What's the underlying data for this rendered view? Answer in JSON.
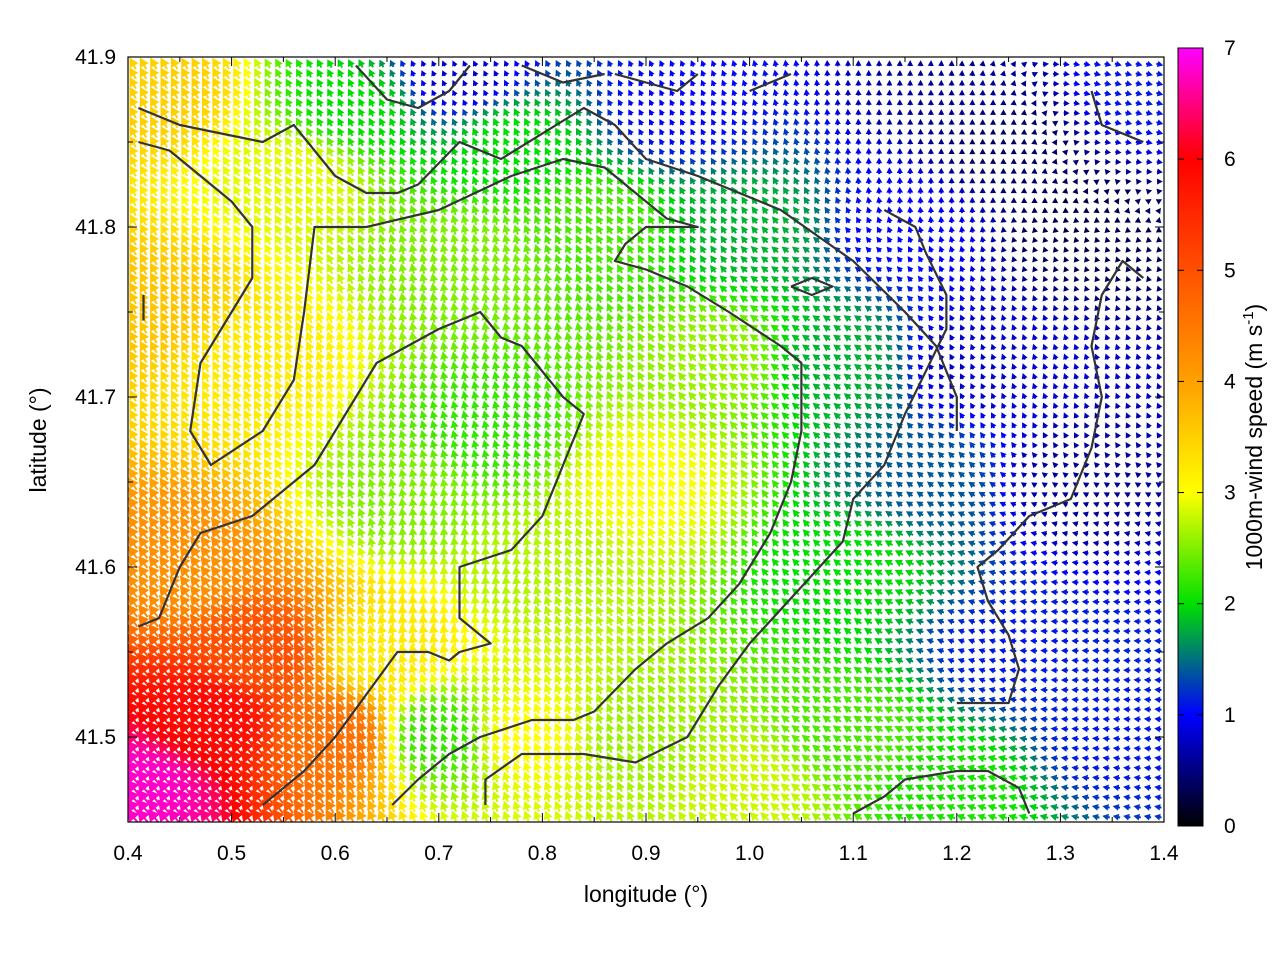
{
  "chart_data": {
    "type": "quiver",
    "xlabel": "longitude (°)",
    "ylabel": "latitude (°)",
    "colorbar_label_text": "1000m-wind speed (m s",
    "colorbar_label_sup": "-1",
    "colorbar_label_close": ")",
    "xlim": [
      0.4,
      1.4
    ],
    "ylim": [
      41.45,
      41.9
    ],
    "x_ticks": [
      0.4,
      0.5,
      0.6,
      0.7,
      0.8,
      0.9,
      1.0,
      1.1,
      1.2,
      1.3,
      1.4
    ],
    "x_tick_labels": [
      "0.4",
      "0.5",
      "0.6",
      "0.7",
      "0.8",
      "0.9",
      "1.0",
      "1.1",
      "1.2",
      "1.3",
      "1.4"
    ],
    "y_ticks": [
      41.5,
      41.6,
      41.7,
      41.8,
      41.9
    ],
    "y_tick_labels": [
      "41.5",
      "41.6",
      "41.7",
      "41.8",
      "41.9"
    ],
    "colorbar_range": [
      0,
      7
    ],
    "colorbar_ticks": [
      0,
      1,
      2,
      3,
      4,
      5,
      6,
      7
    ],
    "colorbar_tick_labels": [
      "0",
      "1",
      "2",
      "3",
      "4",
      "5",
      "6",
      "7"
    ],
    "colormap_stops": [
      {
        "value": 0,
        "color": "#000000"
      },
      {
        "value": 1,
        "color": "#0000ff"
      },
      {
        "value": 2,
        "color": "#00e000"
      },
      {
        "value": 3,
        "color": "#ffff00"
      },
      {
        "value": 4,
        "color": "#ffa000"
      },
      {
        "value": 5,
        "color": "#ff5000"
      },
      {
        "value": 6,
        "color": "#ff0000"
      },
      {
        "value": 7,
        "color": "#ff00ff"
      }
    ],
    "wind_speed_anchors": [
      {
        "lon": 0.41,
        "lat": 41.47,
        "speed": 6.8
      },
      {
        "lon": 0.48,
        "lat": 41.51,
        "speed": 5.9
      },
      {
        "lon": 0.53,
        "lat": 41.55,
        "speed": 5.0
      },
      {
        "lon": 0.6,
        "lat": 41.5,
        "speed": 4.6
      },
      {
        "lon": 0.45,
        "lat": 41.6,
        "speed": 4.2
      },
      {
        "lon": 0.42,
        "lat": 41.75,
        "speed": 3.6
      },
      {
        "lon": 0.43,
        "lat": 41.88,
        "speed": 3.5
      },
      {
        "lon": 0.52,
        "lat": 41.72,
        "speed": 3.2
      },
      {
        "lon": 0.56,
        "lat": 41.83,
        "speed": 2.9
      },
      {
        "lon": 0.64,
        "lat": 41.55,
        "speed": 3.2
      },
      {
        "lon": 0.7,
        "lat": 41.5,
        "speed": 2.2
      },
      {
        "lon": 0.78,
        "lat": 41.5,
        "speed": 3.0
      },
      {
        "lon": 0.9,
        "lat": 41.5,
        "speed": 2.6
      },
      {
        "lon": 0.9,
        "lat": 41.65,
        "speed": 3.0
      },
      {
        "lon": 0.73,
        "lat": 41.78,
        "speed": 2.5
      },
      {
        "lon": 0.67,
        "lat": 41.64,
        "speed": 2.5
      },
      {
        "lon": 0.8,
        "lat": 41.6,
        "speed": 2.7
      },
      {
        "lon": 0.75,
        "lat": 41.68,
        "speed": 2.2
      },
      {
        "lon": 0.97,
        "lat": 41.72,
        "speed": 2.6
      },
      {
        "lon": 0.62,
        "lat": 41.87,
        "speed": 2.0
      },
      {
        "lon": 0.77,
        "lat": 41.85,
        "speed": 2.0
      },
      {
        "lon": 0.85,
        "lat": 41.8,
        "speed": 2.3
      },
      {
        "lon": 1.0,
        "lat": 41.8,
        "speed": 1.8
      },
      {
        "lon": 0.93,
        "lat": 41.87,
        "speed": 1.0
      },
      {
        "lon": 0.72,
        "lat": 41.89,
        "speed": 0.8
      },
      {
        "lon": 1.08,
        "lat": 41.72,
        "speed": 1.8
      },
      {
        "lon": 1.1,
        "lat": 41.6,
        "speed": 2.0
      },
      {
        "lon": 1.1,
        "lat": 41.5,
        "speed": 2.3
      },
      {
        "lon": 1.17,
        "lat": 41.65,
        "speed": 1.4
      },
      {
        "lon": 1.15,
        "lat": 41.8,
        "speed": 1.0
      },
      {
        "lon": 1.22,
        "lat": 41.72,
        "speed": 0.8
      },
      {
        "lon": 1.25,
        "lat": 41.55,
        "speed": 1.1
      },
      {
        "lon": 1.35,
        "lat": 41.5,
        "speed": 1.1
      },
      {
        "lon": 1.32,
        "lat": 41.65,
        "speed": 0.6
      },
      {
        "lon": 1.32,
        "lat": 41.8,
        "speed": 0.3
      },
      {
        "lon": 1.25,
        "lat": 41.85,
        "speed": 0.4
      },
      {
        "lon": 1.38,
        "lat": 41.88,
        "speed": 1.1
      },
      {
        "lon": 1.2,
        "lat": 41.88,
        "speed": 0.6
      },
      {
        "lon": 1.0,
        "lat": 41.47,
        "speed": 2.8
      },
      {
        "lon": 1.2,
        "lat": 41.47,
        "speed": 2.1
      }
    ],
    "wind_direction_anchors": [
      {
        "lon": 0.45,
        "lat": 41.5,
        "dir_deg": 130
      },
      {
        "lon": 0.55,
        "lat": 41.6,
        "dir_deg": 128
      },
      {
        "lon": 0.5,
        "lat": 41.8,
        "dir_deg": 120
      },
      {
        "lon": 0.7,
        "lat": 41.6,
        "dir_deg": 95
      },
      {
        "lon": 0.75,
        "lat": 41.75,
        "dir_deg": 100
      },
      {
        "lon": 0.75,
        "lat": 41.5,
        "dir_deg": 110
      },
      {
        "lon": 0.9,
        "lat": 41.6,
        "dir_deg": 115
      },
      {
        "lon": 0.9,
        "lat": 41.8,
        "dir_deg": 120
      },
      {
        "lon": 1.05,
        "lat": 41.55,
        "dir_deg": 140
      },
      {
        "lon": 1.05,
        "lat": 41.75,
        "dir_deg": 145
      },
      {
        "lon": 1.2,
        "lat": 41.55,
        "dir_deg": 160
      },
      {
        "lon": 1.3,
        "lat": 41.55,
        "dir_deg": 178
      },
      {
        "lon": 1.3,
        "lat": 41.75,
        "dir_deg": 110
      },
      {
        "lon": 1.2,
        "lat": 41.85,
        "dir_deg": 90
      },
      {
        "lon": 1.38,
        "lat": 41.88,
        "dir_deg": -15
      }
    ],
    "contour_lines": [
      [
        [
          0.41,
          41.87
        ],
        [
          0.45,
          41.86
        ],
        [
          0.49,
          41.855
        ],
        [
          0.53,
          41.85
        ],
        [
          0.56,
          41.86
        ],
        [
          0.6,
          41.83
        ],
        [
          0.63,
          41.82
        ],
        [
          0.66,
          41.82
        ],
        [
          0.68,
          41.825
        ],
        [
          0.72,
          41.85
        ],
        [
          0.76,
          41.84
        ],
        [
          0.84,
          41.87
        ],
        [
          0.87,
          41.86
        ],
        [
          0.9,
          41.84
        ],
        [
          0.95,
          41.83
        ],
        [
          1.03,
          41.81
        ],
        [
          1.1,
          41.78
        ],
        [
          1.15,
          41.75
        ],
        [
          1.18,
          41.73
        ],
        [
          1.2,
          41.7
        ],
        [
          1.2,
          41.68
        ]
      ],
      [
        [
          0.41,
          41.85
        ],
        [
          0.44,
          41.845
        ],
        [
          0.47,
          41.83
        ],
        [
          0.5,
          41.815
        ],
        [
          0.52,
          41.8
        ],
        [
          0.52,
          41.77
        ],
        [
          0.5,
          41.75
        ],
        [
          0.47,
          41.72
        ],
        [
          0.46,
          41.68
        ],
        [
          0.48,
          41.66
        ],
        [
          0.53,
          41.68
        ],
        [
          0.56,
          41.71
        ],
        [
          0.57,
          41.75
        ],
        [
          0.58,
          41.8
        ],
        [
          0.63,
          41.8
        ],
        [
          0.7,
          41.81
        ],
        [
          0.77,
          41.83
        ],
        [
          0.82,
          41.84
        ],
        [
          0.86,
          41.835
        ],
        [
          0.89,
          41.82
        ],
        [
          0.92,
          41.805
        ],
        [
          0.95,
          41.8
        ],
        [
          0.9,
          41.8
        ],
        [
          0.88,
          41.79
        ],
        [
          0.87,
          41.78
        ],
        [
          0.9,
          41.775
        ],
        [
          0.94,
          41.765
        ],
        [
          0.98,
          41.75
        ],
        [
          1.03,
          41.73
        ],
        [
          1.05,
          41.72
        ],
        [
          1.05,
          41.68
        ],
        [
          1.04,
          41.65
        ],
        [
          1.02,
          41.62
        ],
        [
          0.99,
          41.59
        ],
        [
          0.96,
          41.57
        ],
        [
          0.92,
          41.555
        ],
        [
          0.89,
          41.54
        ],
        [
          0.85,
          41.515
        ],
        [
          0.83,
          41.51
        ],
        [
          0.79,
          41.51
        ],
        [
          0.74,
          41.5
        ],
        [
          0.71,
          41.49
        ],
        [
          0.68,
          41.475
        ],
        [
          0.655,
          41.46
        ]
      ],
      [
        [
          0.41,
          41.565
        ],
        [
          0.43,
          41.57
        ],
        [
          0.45,
          41.6
        ],
        [
          0.47,
          41.62
        ],
        [
          0.52,
          41.63
        ],
        [
          0.58,
          41.66
        ],
        [
          0.61,
          41.69
        ],
        [
          0.64,
          41.72
        ],
        [
          0.7,
          41.74
        ],
        [
          0.74,
          41.75
        ],
        [
          0.76,
          41.735
        ],
        [
          0.78,
          41.73
        ],
        [
          0.82,
          41.7
        ],
        [
          0.84,
          41.69
        ],
        [
          0.82,
          41.66
        ],
        [
          0.8,
          41.63
        ],
        [
          0.77,
          41.61
        ],
        [
          0.72,
          41.6
        ],
        [
          0.72,
          41.57
        ],
        [
          0.75,
          41.555
        ],
        [
          0.72,
          41.55
        ],
        [
          0.71,
          41.545
        ],
        [
          0.69,
          41.55
        ],
        [
          0.66,
          41.55
        ],
        [
          0.63,
          41.525
        ],
        [
          0.6,
          41.5
        ],
        [
          0.57,
          41.48
        ],
        [
          0.53,
          41.46
        ]
      ],
      [
        [
          0.745,
          41.46
        ],
        [
          0.745,
          41.475
        ],
        [
          0.78,
          41.49
        ],
        [
          0.84,
          41.49
        ],
        [
          0.89,
          41.485
        ],
        [
          0.94,
          41.5
        ],
        [
          0.97,
          41.53
        ],
        [
          1.0,
          41.555
        ],
        [
          1.03,
          41.575
        ],
        [
          1.06,
          41.595
        ],
        [
          1.09,
          41.615
        ],
        [
          1.1,
          41.64
        ],
        [
          1.13,
          41.66
        ],
        [
          1.15,
          41.69
        ],
        [
          1.19,
          41.74
        ],
        [
          1.19,
          41.76
        ],
        [
          1.17,
          41.785
        ],
        [
          1.16,
          41.8
        ],
        [
          1.13,
          41.81
        ]
      ],
      [
        [
          1.1,
          41.455
        ],
        [
          1.13,
          41.465
        ],
        [
          1.15,
          41.475
        ],
        [
          1.2,
          41.48
        ],
        [
          1.23,
          41.48
        ],
        [
          1.26,
          41.47
        ],
        [
          1.27,
          41.455
        ]
      ],
      [
        [
          1.2,
          41.52
        ],
        [
          1.22,
          41.52
        ],
        [
          1.25,
          41.52
        ],
        [
          1.26,
          41.54
        ],
        [
          1.25,
          41.56
        ],
        [
          1.23,
          41.58
        ],
        [
          1.22,
          41.6
        ],
        [
          1.24,
          41.61
        ],
        [
          1.27,
          41.63
        ],
        [
          1.31,
          41.64
        ],
        [
          1.33,
          41.67
        ],
        [
          1.34,
          41.7
        ],
        [
          1.33,
          41.73
        ],
        [
          1.34,
          41.76
        ],
        [
          1.36,
          41.78
        ],
        [
          1.38,
          41.77
        ]
      ],
      [
        [
          1.33,
          41.88
        ],
        [
          1.34,
          41.86
        ],
        [
          1.38,
          41.85
        ]
      ],
      [
        [
          0.415,
          41.76
        ],
        [
          0.415,
          41.745
        ]
      ],
      [
        [
          0.62,
          41.895
        ],
        [
          0.65,
          41.875
        ],
        [
          0.68,
          41.87
        ],
        [
          0.71,
          41.88
        ],
        [
          0.73,
          41.895
        ]
      ],
      [
        [
          0.78,
          41.895
        ],
        [
          0.82,
          41.885
        ],
        [
          0.86,
          41.89
        ]
      ],
      [
        [
          0.87,
          41.89
        ],
        [
          0.9,
          41.885
        ],
        [
          0.93,
          41.88
        ],
        [
          0.95,
          41.89
        ]
      ],
      [
        [
          1.04,
          41.765
        ],
        [
          1.06,
          41.76
        ],
        [
          1.08,
          41.765
        ],
        [
          1.06,
          41.77
        ],
        [
          1.04,
          41.765
        ]
      ],
      [
        [
          1.0,
          41.88
        ],
        [
          1.02,
          41.885
        ],
        [
          1.04,
          41.89
        ]
      ]
    ]
  }
}
